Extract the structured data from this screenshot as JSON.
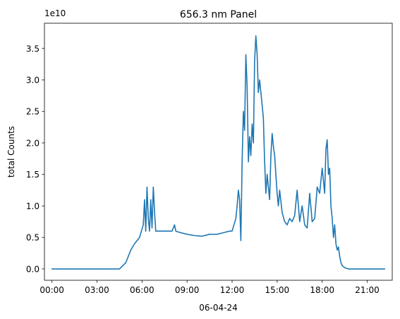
{
  "chart_data": {
    "type": "line",
    "title": "656.3 nm Panel",
    "xlabel": "06-04-24",
    "ylabel": "total Counts",
    "y_offset_label": "1e10",
    "grid": false,
    "xlim": [
      "23:30",
      "22:40"
    ],
    "ylim": [
      -0.18,
      3.9
    ],
    "x_ticks": [
      {
        "value": "00:00",
        "label": "00:00"
      },
      {
        "value": "03:00",
        "label": "03:00"
      },
      {
        "value": "06:00",
        "label": "06:00"
      },
      {
        "value": "09:00",
        "label": "09:00"
      },
      {
        "value": "12:00",
        "label": "12:00"
      },
      {
        "value": "15:00",
        "label": "15:00"
      },
      {
        "value": "18:00",
        "label": "18:00"
      },
      {
        "value": "21:00",
        "label": "21:00"
      }
    ],
    "y_ticks": [
      {
        "value": 0.0,
        "label": "0.0"
      },
      {
        "value": 0.5,
        "label": "0.5"
      },
      {
        "value": 1.0,
        "label": "1.0"
      },
      {
        "value": 1.5,
        "label": "1.5"
      },
      {
        "value": 2.0,
        "label": "2.0"
      },
      {
        "value": 2.5,
        "label": "2.5"
      },
      {
        "value": 3.0,
        "label": "3.0"
      },
      {
        "value": 3.5,
        "label": "3.5"
      }
    ],
    "series": [
      {
        "color": "#1f77b4",
        "x": [
          "00:00",
          "04:30",
          "04:55",
          "05:15",
          "05:30",
          "05:50",
          "06:05",
          "06:10",
          "06:15",
          "06:20",
          "06:25",
          "06:30",
          "06:35",
          "06:40",
          "06:45",
          "06:50",
          "06:55",
          "07:00",
          "07:05",
          "07:10",
          "07:15",
          "07:30",
          "08:00",
          "08:10",
          "08:15",
          "08:30",
          "09:00",
          "09:30",
          "10:00",
          "10:30",
          "11:00",
          "11:30",
          "11:50",
          "12:00",
          "12:15",
          "12:20",
          "12:25",
          "12:30",
          "12:35",
          "12:40",
          "12:45",
          "12:50",
          "12:55",
          "13:00",
          "13:05",
          "13:10",
          "13:15",
          "13:20",
          "13:25",
          "13:30",
          "13:35",
          "13:40",
          "13:45",
          "13:50",
          "13:55",
          "14:00",
          "14:05",
          "14:10",
          "14:15",
          "14:20",
          "14:25",
          "14:30",
          "14:35",
          "14:40",
          "14:45",
          "14:50",
          "15:00",
          "15:05",
          "15:10",
          "15:20",
          "15:30",
          "15:40",
          "15:50",
          "16:00",
          "16:10",
          "16:20",
          "16:30",
          "16:40",
          "16:50",
          "17:00",
          "17:10",
          "17:20",
          "17:30",
          "17:40",
          "17:50",
          "18:00",
          "18:05",
          "18:10",
          "18:15",
          "18:20",
          "18:25",
          "18:30",
          "18:35",
          "18:40",
          "18:45",
          "18:50",
          "18:55",
          "19:00",
          "19:05",
          "19:10",
          "19:15",
          "19:20",
          "19:30",
          "19:45",
          "20:00",
          "20:20",
          "20:40",
          "21:00",
          "22:10"
        ],
        "values": [
          0.0,
          0.0,
          0.1,
          0.3,
          0.4,
          0.5,
          0.7,
          1.1,
          0.6,
          1.3,
          0.8,
          0.6,
          1.1,
          0.65,
          1.3,
          0.9,
          0.6,
          0.6,
          0.6,
          0.6,
          0.6,
          0.6,
          0.6,
          0.7,
          0.6,
          0.58,
          0.55,
          0.53,
          0.52,
          0.55,
          0.55,
          0.58,
          0.6,
          0.6,
          0.8,
          1.0,
          1.25,
          1.1,
          0.45,
          1.7,
          2.5,
          2.2,
          3.4,
          2.9,
          1.7,
          2.1,
          1.8,
          2.3,
          2.0,
          3.3,
          3.7,
          3.4,
          2.8,
          3.0,
          2.8,
          2.6,
          2.4,
          1.7,
          1.2,
          1.5,
          1.3,
          1.1,
          1.8,
          2.15,
          1.95,
          1.8,
          1.2,
          1.0,
          1.25,
          0.9,
          0.75,
          0.7,
          0.8,
          0.75,
          0.85,
          1.25,
          0.75,
          1.0,
          0.7,
          0.65,
          1.2,
          0.75,
          0.8,
          1.3,
          1.2,
          1.6,
          1.4,
          1.2,
          1.9,
          2.05,
          1.5,
          1.6,
          1.0,
          0.8,
          0.5,
          0.7,
          0.4,
          0.3,
          0.35,
          0.2,
          0.1,
          0.05,
          0.02,
          0.0,
          0.0,
          0.0,
          0.0,
          0.0,
          0.0
        ]
      }
    ]
  }
}
